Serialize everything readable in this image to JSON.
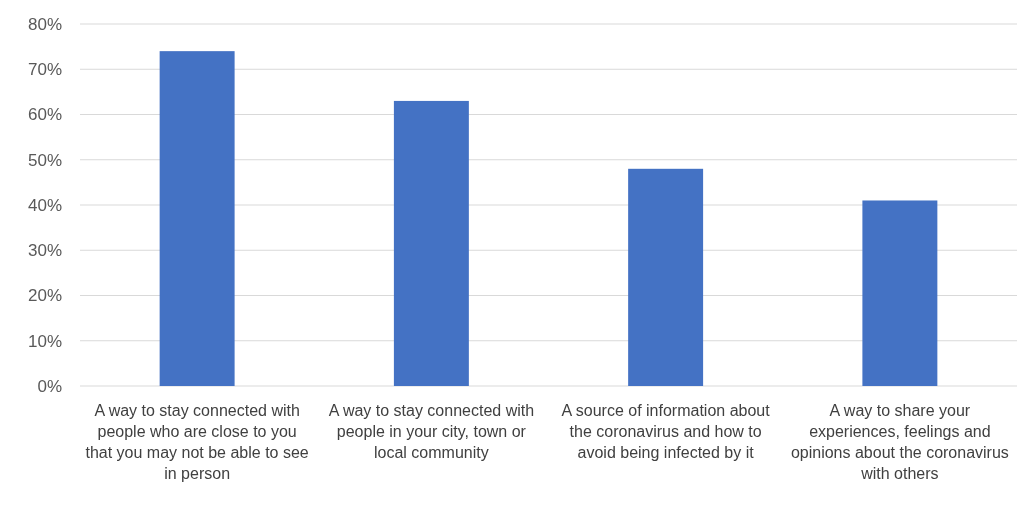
{
  "chart_data": {
    "type": "bar",
    "categories": [
      "A way to stay connected with people who are close to you that you may not be able to see in person",
      "A way to stay connected with people in your city, town or local community",
      "A source of information about the coronavirus and how to avoid being infected by it",
      "A way to share your experiences, feelings and opinions about the coronavirus with others"
    ],
    "values": [
      74,
      63,
      48,
      41
    ],
    "color": "#4472c4",
    "ylim": [
      0,
      80
    ],
    "yticks": [
      {
        "value": 0,
        "label": "0%"
      },
      {
        "value": 10,
        "label": "10%"
      },
      {
        "value": 20,
        "label": "20%"
      },
      {
        "value": 30,
        "label": "30%"
      },
      {
        "value": 40,
        "label": "40%"
      },
      {
        "value": 50,
        "label": "50%"
      },
      {
        "value": 60,
        "label": "60%"
      },
      {
        "value": 70,
        "label": "70%"
      },
      {
        "value": 80,
        "label": "80%"
      }
    ],
    "grid": "y"
  }
}
